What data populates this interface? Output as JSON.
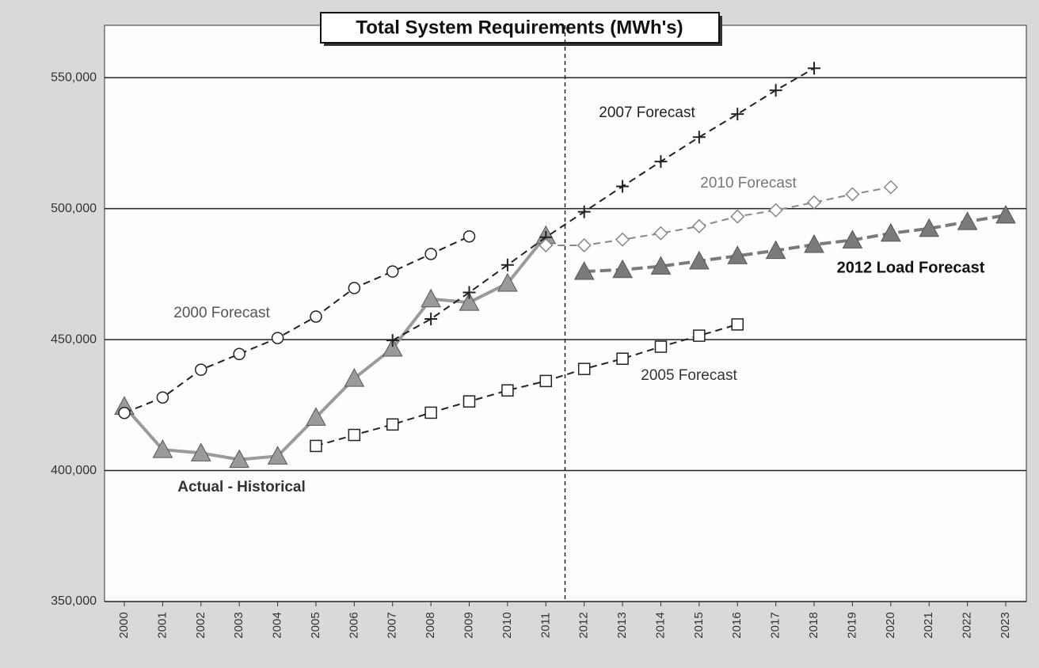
{
  "chart_data": {
    "type": "line",
    "title": "Total System Requirements (MWh's)",
    "categories": [
      "2000",
      "2001",
      "2002",
      "2003",
      "2004",
      "2005",
      "2006",
      "2007",
      "2008",
      "2009",
      "2010",
      "2011",
      "2012",
      "2013",
      "2014",
      "2015",
      "2016",
      "2017",
      "2018",
      "2019",
      "2020",
      "2021",
      "2022",
      "2023"
    ],
    "ylim": [
      350000,
      570000
    ],
    "yticks": [
      {
        "value": 350000,
        "label": "350,000"
      },
      {
        "value": 400000,
        "label": "400,000"
      },
      {
        "value": 450000,
        "label": "450,000"
      },
      {
        "value": 500000,
        "label": "500,000"
      },
      {
        "value": 550000,
        "label": "550,000"
      }
    ],
    "grid": true,
    "series": [
      {
        "name": "Actual - Historical",
        "color": "#9a9a9a",
        "marker": "triangle",
        "dashed": false,
        "values": [
          424500,
          408000,
          406700,
          404200,
          405500,
          420300,
          435200,
          446700,
          465500,
          464200,
          471500,
          489700,
          null,
          null,
          null,
          null,
          null,
          null,
          null,
          null,
          null,
          null,
          null,
          null
        ]
      },
      {
        "name": "2012 Load Forecast",
        "color": "#7a7a7a",
        "marker": "triangle",
        "dashed": true,
        "values": [
          null,
          null,
          null,
          null,
          null,
          null,
          null,
          null,
          null,
          null,
          null,
          null,
          476000,
          476700,
          478000,
          480000,
          482000,
          484000,
          486300,
          488000,
          490600,
          492400,
          495000,
          497500
        ]
      },
      {
        "name": "2000 Forecast",
        "color": "#222222",
        "marker": "circle",
        "dashed": true,
        "values": [
          422000,
          427900,
          438500,
          444500,
          450600,
          458800,
          469700,
          476000,
          482700,
          489400,
          null,
          null,
          null,
          null,
          null,
          null,
          null,
          null,
          null,
          null,
          null,
          null,
          null,
          null
        ]
      },
      {
        "name": "2007 Forecast",
        "color": "#222222",
        "marker": "plus",
        "dashed": true,
        "values": [
          null,
          null,
          null,
          null,
          null,
          null,
          null,
          449700,
          457900,
          468000,
          478500,
          489100,
          498800,
          508500,
          518000,
          527300,
          536100,
          545200,
          553600,
          null,
          null,
          null,
          null,
          null
        ]
      },
      {
        "name": "2010 Forecast",
        "color": "#888888",
        "marker": "diamond",
        "dashed": true,
        "values": [
          null,
          null,
          null,
          null,
          null,
          null,
          null,
          null,
          null,
          null,
          null,
          486000,
          486000,
          488200,
          490600,
          493300,
          497000,
          499400,
          502400,
          505500,
          508200,
          null,
          null,
          null
        ]
      },
      {
        "name": "2005 Forecast",
        "color": "#222222",
        "marker": "square",
        "dashed": true,
        "values": [
          null,
          null,
          null,
          null,
          null,
          409400,
          413600,
          417600,
          422100,
          426400,
          430600,
          434200,
          438800,
          442700,
          447300,
          451500,
          455800,
          null,
          null,
          null,
          null,
          null,
          null,
          null
        ]
      }
    ]
  }
}
